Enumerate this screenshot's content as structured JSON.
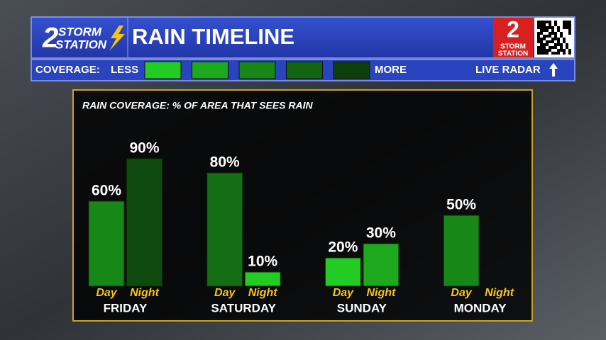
{
  "header": {
    "logo": {
      "number": "2",
      "top": "STORM",
      "bottom": "STATION"
    },
    "title": "RAIN TIMELINE",
    "coverage_label": "COVERAGE:",
    "less": "LESS",
    "more": "MORE",
    "legend_colors": [
      "#22cc22",
      "#1da81d",
      "#178817",
      "#126612",
      "#0d3f0d"
    ],
    "live_radar": "LIVE RADAR"
  },
  "chart_data": {
    "type": "bar",
    "title": "RAIN COVERAGE: % OF AREA THAT SEES RAIN",
    "categories": [
      "FRIDAY",
      "SATURDAY",
      "SUNDAY",
      "MONDAY"
    ],
    "ylim": [
      0,
      100
    ],
    "series": [
      {
        "name": "Day",
        "values": [
          60,
          80,
          20,
          50
        ],
        "value_labels": [
          "60%",
          "80%",
          "20%",
          "50%"
        ],
        "colors": [
          "#178817",
          "#146e14",
          "#22cc22",
          "#178817"
        ]
      },
      {
        "name": "Night",
        "values": [
          90,
          10,
          30,
          null
        ],
        "value_labels": [
          "90%",
          "10%",
          "30%",
          null
        ],
        "colors": [
          "#0f4a0f",
          "#22cc22",
          "#1da81d",
          null
        ]
      }
    ]
  }
}
